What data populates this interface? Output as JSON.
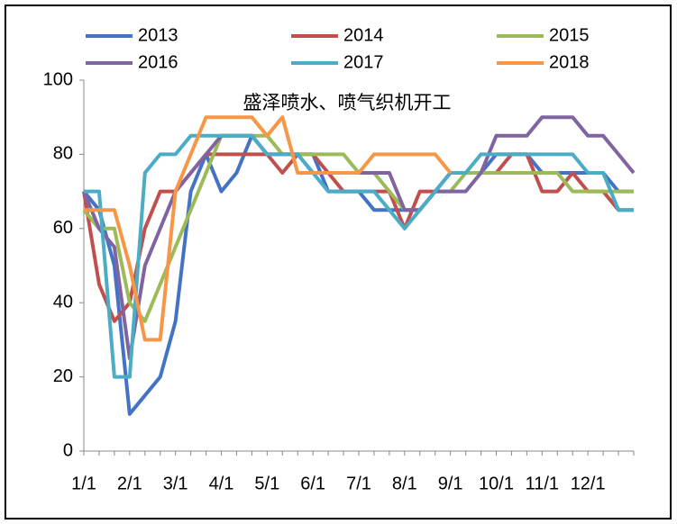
{
  "chart_data": {
    "type": "line",
    "title": "盛泽喷水、喷气织机开工",
    "categories": [
      "1/1",
      null,
      null,
      "2/1",
      null,
      null,
      "3/1",
      null,
      null,
      "4/1",
      null,
      null,
      "5/1",
      null,
      null,
      "6/1",
      null,
      null,
      "7/1",
      null,
      null,
      "8/1",
      null,
      null,
      "9/1",
      null,
      null,
      "10/1",
      null,
      null,
      "11/1",
      null,
      null,
      "12/1",
      null,
      null,
      null
    ],
    "series": [
      {
        "name": "2013",
        "color": "#4472c4",
        "values": [
          70,
          65,
          50,
          10,
          15,
          20,
          35,
          70,
          80,
          70,
          75,
          85,
          80,
          80,
          80,
          80,
          70,
          70,
          70,
          65,
          65,
          65,
          65,
          70,
          75,
          75,
          75,
          80,
          80,
          80,
          75,
          75,
          75,
          75,
          75,
          70,
          70
        ]
      },
      {
        "name": "2014",
        "color": "#c0504d",
        "values": [
          70,
          45,
          35,
          40,
          60,
          70,
          70,
          75,
          80,
          80,
          80,
          80,
          80,
          75,
          80,
          80,
          75,
          70,
          70,
          70,
          70,
          60,
          70,
          70,
          75,
          75,
          75,
          75,
          80,
          80,
          70,
          70,
          75,
          70,
          70,
          65,
          65
        ]
      },
      {
        "name": "2015",
        "color": "#9bbb59",
        "values": [
          65,
          60,
          60,
          40,
          35,
          45,
          55,
          65,
          75,
          85,
          85,
          85,
          85,
          80,
          80,
          80,
          80,
          80,
          75,
          75,
          70,
          65,
          65,
          70,
          70,
          75,
          75,
          75,
          75,
          75,
          75,
          75,
          70,
          70,
          70,
          70,
          70
        ]
      },
      {
        "name": "2016",
        "color": "#8064a2",
        "values": [
          70,
          60,
          55,
          25,
          50,
          60,
          70,
          75,
          80,
          85,
          85,
          85,
          80,
          80,
          80,
          75,
          75,
          75,
          75,
          75,
          75,
          65,
          65,
          70,
          70,
          70,
          75,
          85,
          85,
          85,
          90,
          90,
          90,
          85,
          85,
          80,
          75
        ]
      },
      {
        "name": "2017",
        "color": "#4bacc6",
        "values": [
          70,
          70,
          20,
          20,
          75,
          80,
          80,
          85,
          85,
          85,
          85,
          85,
          80,
          80,
          80,
          75,
          70,
          70,
          70,
          70,
          65,
          60,
          65,
          70,
          75,
          75,
          80,
          80,
          80,
          80,
          80,
          80,
          80,
          75,
          75,
          65,
          65
        ]
      },
      {
        "name": "2018",
        "color": "#f79646",
        "values": [
          65,
          65,
          65,
          50,
          30,
          30,
          70,
          80,
          90,
          90,
          90,
          90,
          85,
          90,
          75,
          75,
          75,
          75,
          75,
          80,
          80,
          80,
          80,
          80,
          75,
          null,
          null,
          null,
          null,
          null,
          null,
          null,
          null,
          null,
          null,
          null,
          null
        ]
      }
    ],
    "ylim": [
      0,
      100
    ],
    "yticks": [
      0,
      20,
      40,
      60,
      80,
      100
    ],
    "grid": false
  }
}
